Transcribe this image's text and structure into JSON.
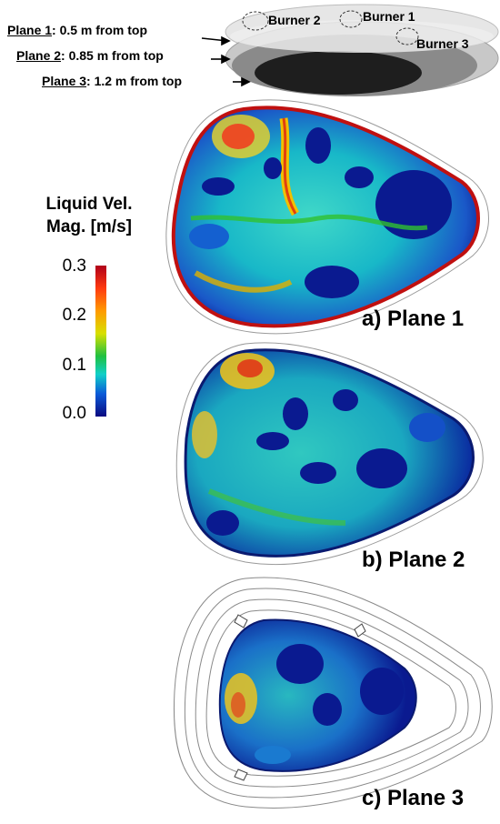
{
  "planes": [
    {
      "name": "Plane 1",
      "desc": ": 0.5 m from top"
    },
    {
      "name": "Plane 2",
      "desc": ": 0.85 m from top"
    },
    {
      "name": "Plane 3",
      "desc": ": 1.2 m from top"
    }
  ],
  "burners": [
    "Burner 2",
    "Burner 1",
    "Burner 3"
  ],
  "colorbar": {
    "title_line1": "Liquid Vel.",
    "title_line2": "Mag. [m/s]",
    "ticks": [
      "0.3",
      "0.2",
      "0.1",
      "0.0"
    ],
    "range": [
      0.0,
      0.3
    ],
    "colors": [
      "#ff1a1a",
      "#ff9900",
      "#f2e600",
      "#20c020",
      "#10d0c0",
      "#0090e0",
      "#0a1aa0",
      "#0a0a70"
    ]
  },
  "panels": [
    {
      "label": "a) Plane 1"
    },
    {
      "label": "b) Plane 2"
    },
    {
      "label": "c) Plane 3"
    }
  ]
}
